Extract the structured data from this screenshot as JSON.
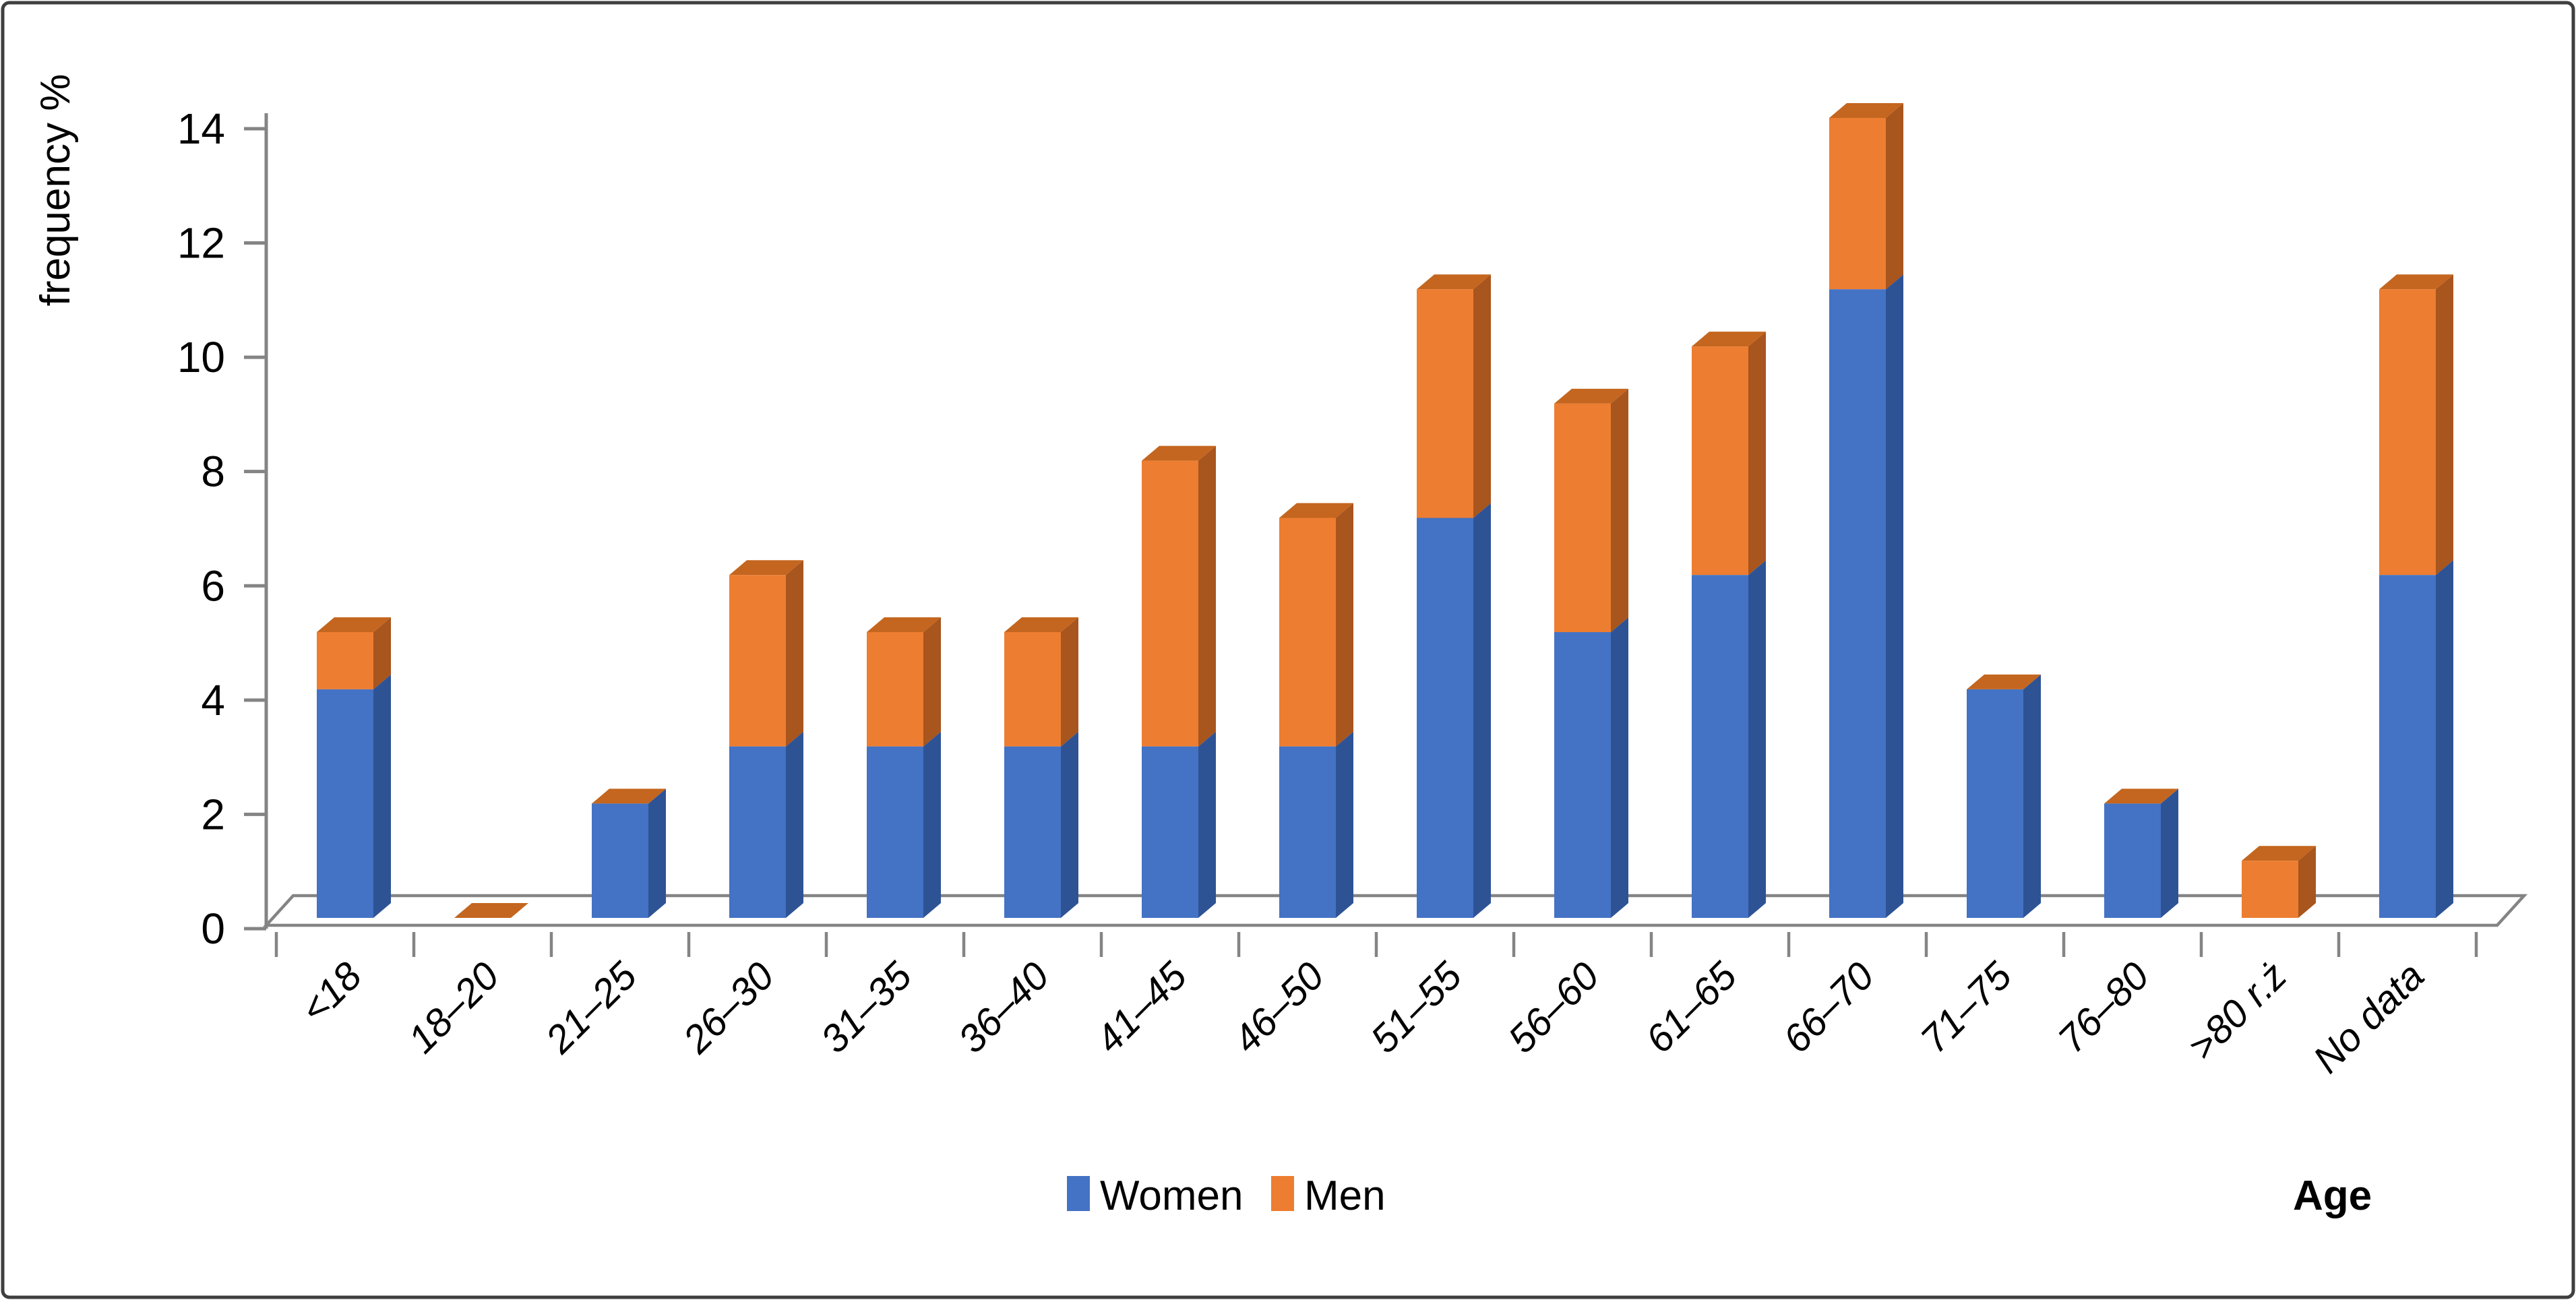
{
  "figure": {
    "background": "#FFFFFF",
    "border_color": "#3F3F3F"
  },
  "chart_data": {
    "type": "bar",
    "stacked": true,
    "effect": "3d",
    "title": "",
    "ylabel": "frequency %",
    "xlabel": "Age",
    "categories": [
      "<18",
      "18–20",
      "21–25",
      "26–30",
      "31–35",
      "36–40",
      "41–45",
      "46–50",
      "51–55",
      "56–60",
      "61–65",
      "66–70",
      "71–75",
      "76–80",
      ">80 r.ż",
      "No data"
    ],
    "series": [
      {
        "name": "Women",
        "color": "#4472C4",
        "values": [
          4,
          0,
          2,
          3,
          3,
          3,
          3,
          3,
          7,
          5,
          6,
          11,
          4,
          2,
          0,
          6
        ]
      },
      {
        "name": "Men",
        "color": "#ED7D31",
        "values": [
          1,
          0,
          0,
          3,
          2,
          2,
          5,
          4,
          4,
          4,
          4,
          3,
          0,
          0,
          1,
          5
        ]
      }
    ],
    "ylim": [
      0,
      14
    ],
    "ytick_step": 2,
    "yticks": [
      0,
      2,
      4,
      6,
      8,
      10,
      12,
      14
    ],
    "grid": false,
    "legend_position": "bottom-center",
    "colors": {
      "women_front": "#4472C4",
      "women_side": "#2E5395",
      "men_front": "#ED7D31",
      "men_side": "#A8551E",
      "men_top": "#C4661F",
      "axis": "#848484",
      "text": "#000000",
      "border": "#3F3F3F"
    }
  }
}
